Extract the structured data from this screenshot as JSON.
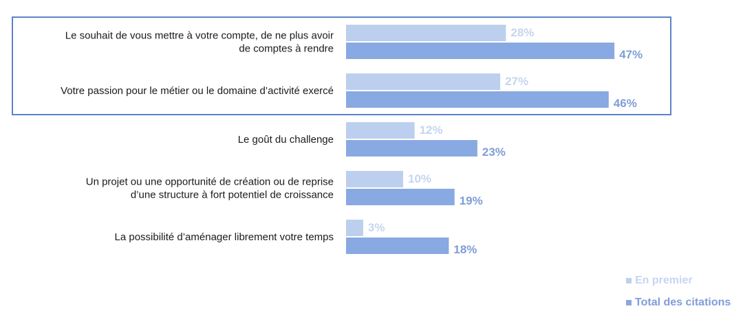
{
  "colors": {
    "first": "#bccfee",
    "total": "#88a9e1",
    "highlight_border": "#5b82c8",
    "first_label": "#c5d5f1",
    "total_label": "#7f9dd8"
  },
  "chart_data": {
    "type": "bar",
    "orientation": "horizontal",
    "unit": "%",
    "categories": [
      [
        "Le souhait de vous mettre à votre compte, de ne plus avoir",
        "de comptes à rendre"
      ],
      [
        "Votre passion pour le métier ou le domaine d’activité exercé"
      ],
      [
        "Le goût du challenge"
      ],
      [
        "Un projet ou une opportunité de création ou de reprise",
        "d’une structure à fort potentiel de croissance"
      ],
      [
        "La possibilité d’aménager librement votre temps"
      ]
    ],
    "series": [
      {
        "name": "En premier",
        "values": [
          28,
          27,
          12,
          10,
          3
        ],
        "labels": [
          "28%",
          "27%",
          "12%",
          "10%",
          "3%"
        ]
      },
      {
        "name": "Total des citations",
        "values": [
          47,
          46,
          23,
          19,
          18
        ],
        "labels": [
          "47%",
          "46%",
          "23%",
          "19%",
          "18%"
        ]
      }
    ],
    "xlim": [
      0,
      100
    ],
    "highlighted_categories": 2,
    "legend": {
      "position": "bottom-right",
      "entries": [
        "En premier",
        "Total des citations"
      ]
    }
  }
}
